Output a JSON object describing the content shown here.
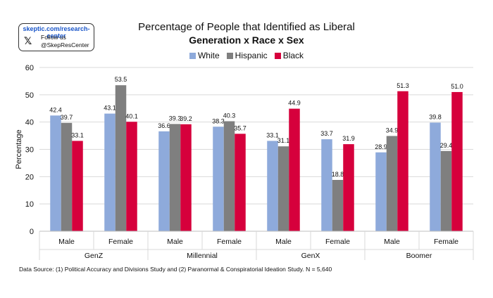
{
  "badge": {
    "url": "skeptic.com/research-center",
    "icon": "x-logo-icon",
    "follow": "Follow us",
    "handle": "@SkepResCenter"
  },
  "colors": {
    "White": "#8eaadb",
    "Hispanic": "#7f7f7f",
    "Black": "#d6003c"
  },
  "chart_data": {
    "type": "bar",
    "title": "Percentage of People that Identified as Liberal",
    "subtitle": "Generation x Race x Sex",
    "ylabel": "Percentage",
    "ylim": [
      0,
      60
    ],
    "yticks": [
      0,
      10,
      20,
      30,
      40,
      50,
      60
    ],
    "grid": true,
    "legend_position": "top-center",
    "groups": [
      "GenZ",
      "Millennial",
      "GenX",
      "Boomer"
    ],
    "categories": [
      "Male",
      "Female",
      "Male",
      "Female",
      "Male",
      "Female",
      "Male",
      "Female"
    ],
    "series": [
      {
        "name": "White",
        "values": [
          42.4,
          43.1,
          36.6,
          38.3,
          33.1,
          33.7,
          28.9,
          39.8
        ]
      },
      {
        "name": "Hispanic",
        "values": [
          39.7,
          53.5,
          39.3,
          40.3,
          31.1,
          18.8,
          34.9,
          29.4
        ]
      },
      {
        "name": "Black",
        "values": [
          33.1,
          40.1,
          39.2,
          35.7,
          44.9,
          31.9,
          51.3,
          51.0
        ]
      }
    ]
  },
  "source": "Data Source: (1) Political Accuracy and Divisions Study and (2) Paranormal & Conspiratorial Ideation Study. N = 5,640"
}
